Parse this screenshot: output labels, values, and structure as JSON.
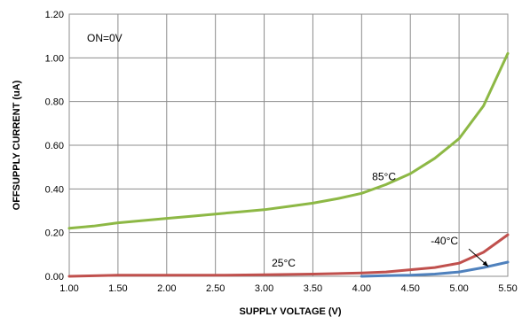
{
  "chart_data": {
    "type": "line",
    "xlabel": "SUPPLY VOLTAGE (V)",
    "ylabel": "OFFSUPPLY CURRENT (uA)",
    "xlim": [
      1.0,
      5.5
    ],
    "ylim": [
      0.0,
      1.2
    ],
    "xticks": [
      "1.00",
      "1.50",
      "2.00",
      "2.50",
      "3.00",
      "3.50",
      "4.00",
      "4.50",
      "5.00",
      "5.50"
    ],
    "yticks": [
      "0.00",
      "0.20",
      "0.40",
      "0.60",
      "0.80",
      "1.00",
      "1.20"
    ],
    "grid": true,
    "annotation": "ON=0V",
    "series": [
      {
        "name": "85°C",
        "color": "#8DB845",
        "x": [
          1.0,
          1.25,
          1.5,
          1.75,
          2.0,
          2.25,
          2.5,
          2.75,
          3.0,
          3.25,
          3.5,
          3.75,
          4.0,
          4.25,
          4.5,
          4.75,
          5.0,
          5.25,
          5.5
        ],
        "y": [
          0.22,
          0.23,
          0.245,
          0.255,
          0.265,
          0.275,
          0.285,
          0.295,
          0.305,
          0.32,
          0.335,
          0.355,
          0.38,
          0.42,
          0.47,
          0.54,
          0.63,
          0.78,
          1.02
        ]
      },
      {
        "name": "25°C",
        "color": "#C0504D",
        "x": [
          1.0,
          1.5,
          2.0,
          2.5,
          3.0,
          3.5,
          4.0,
          4.25,
          4.5,
          4.75,
          5.0,
          5.25,
          5.5
        ],
        "y": [
          0.0,
          0.005,
          0.005,
          0.005,
          0.007,
          0.01,
          0.015,
          0.02,
          0.03,
          0.04,
          0.06,
          0.11,
          0.19
        ]
      },
      {
        "name": "-40°C",
        "color": "#4F81BD",
        "x": [
          4.0,
          4.25,
          4.5,
          4.75,
          5.0,
          5.25,
          5.5
        ],
        "y": [
          0.0,
          0.003,
          0.005,
          0.01,
          0.02,
          0.04,
          0.065
        ]
      }
    ]
  }
}
